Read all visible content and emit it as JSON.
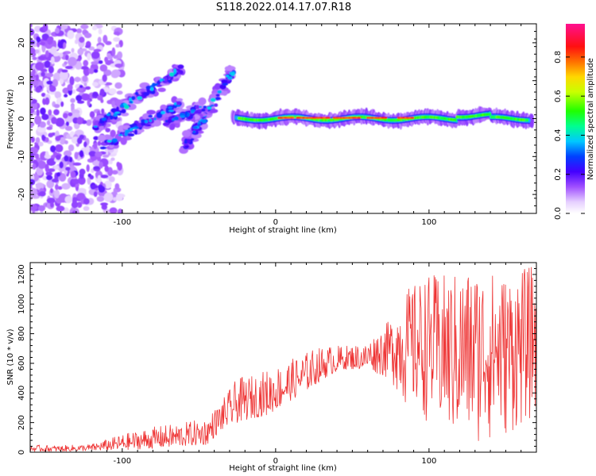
{
  "title": "S118.2022.014.17.07.R18",
  "colors": {
    "snr_line": "#ee3333",
    "frame": "#000000"
  },
  "chart_data": [
    {
      "type": "heatmap",
      "xlabel": "Height of straight line (km)",
      "ylabel": "Frequency (Hz)",
      "xlim": [
        -160,
        170
      ],
      "ylim": [
        -25,
        25
      ],
      "xticks": [
        -100,
        0,
        100
      ],
      "yticks": [
        -20,
        -10,
        0,
        10,
        20
      ],
      "colorbar": {
        "label": "Normalized spectral amplitude",
        "ticks": [
          "0.0",
          "0.2",
          "0.4",
          "0.6",
          "0.8"
        ],
        "range": [
          0,
          0.97
        ],
        "colormap": "rainbow (white-lavender-purple-blue-cyan-green-yellow-red-magenta)"
      },
      "description_features": {
        "central_ridge": {
          "x_range": [
            -25,
            168
          ],
          "frequency_hz": 0
        },
        "diagonal_streaks": [
          {
            "x_range": [
              -115,
              -60
            ],
            "freq_range": [
              -7,
              13
            ]
          },
          {
            "x_range": [
              -60,
              -28
            ],
            "freq_range": [
              -7,
              13
            ]
          }
        ],
        "noise_cloud": {
          "x_range": [
            -160,
            -100
          ],
          "freq_range": [
            -25,
            25
          ]
        }
      }
    },
    {
      "type": "line",
      "xlabel": "Height of straight line (km)",
      "ylabel": "SNR (10 * v/v)",
      "xlim": [
        -160,
        170
      ],
      "ylim": [
        0,
        1280
      ],
      "xticks": [
        -100,
        0,
        100
      ],
      "yticks": [
        0,
        200,
        400,
        600,
        800,
        1000,
        1200
      ],
      "series": [
        {
          "envelope": {
            "x": [
              -160,
              -140,
              -120,
              -100,
              -80,
              -60,
              -45,
              -35,
              -25,
              -15,
              -5,
              5,
              15,
              25,
              35,
              45,
              60,
              75,
              85,
              100,
              115,
              130,
              150,
              165,
              170
            ],
            "y_low": [
              5,
              5,
              10,
              15,
              25,
              40,
              50,
              150,
              200,
              230,
              250,
              320,
              380,
              450,
              520,
              560,
              560,
              480,
              300,
              200,
              80,
              50,
              100,
              200,
              250
            ],
            "y_high": [
              50,
              45,
              55,
              120,
              170,
              200,
              230,
              350,
              500,
              520,
              560,
              600,
              650,
              700,
              720,
              720,
              740,
              900,
              1100,
              1200,
              1200,
              1250,
              1200,
              1250,
              1280
            ]
          }
        }
      ]
    }
  ]
}
